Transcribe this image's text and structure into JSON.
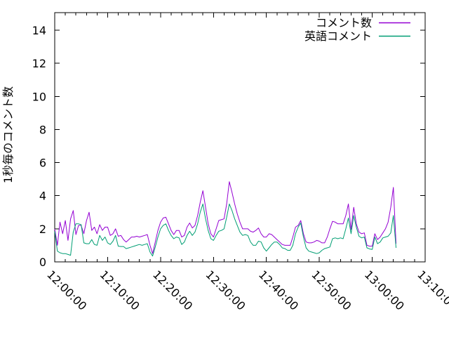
{
  "chart_data": {
    "type": "line",
    "title": "",
    "xlabel": "",
    "ylabel": "1秒毎のコメント数",
    "background": "#ffffff",
    "axis_color": "#000000",
    "grid": false,
    "legend_position": "top-right-inside",
    "x_tick_labels": [
      "12:00:00",
      "12:10:00",
      "12:20:00",
      "12:30:00",
      "12:40:00",
      "12:50:00",
      "13:00:00",
      "13:10:00"
    ],
    "x_tick_interval_seconds": 600,
    "x_minor_interval_seconds": 120,
    "x_total_seconds": 4200,
    "x_start_seconds": 0,
    "x_step_seconds": 30,
    "y_ticks": [
      0,
      2,
      4,
      6,
      8,
      10,
      12,
      14
    ],
    "y_max": 15.06,
    "series": [
      {
        "name": "コメント数",
        "color": "#9400d3",
        "values": [
          2,
          1,
          2.4,
          1.7,
          2.5,
          1.3,
          2.6,
          3.1,
          1.65,
          2.2,
          2.2,
          1.7,
          2.5,
          3,
          1.9,
          2.1,
          1.7,
          2.25,
          1.9,
          2.1,
          2.1,
          1.6,
          1.7,
          2,
          1.55,
          1.6,
          1.35,
          1.2,
          1.35,
          1.5,
          1.5,
          1.55,
          1.5,
          1.55,
          1.6,
          1.65,
          1,
          0.5,
          1.2,
          1.9,
          2.4,
          2.65,
          2.7,
          2.3,
          1.9,
          1.65,
          1.9,
          1.9,
          1.5,
          1.6,
          2.1,
          2.35,
          2.05,
          2.2,
          2.8,
          3.6,
          4.3,
          3.3,
          2.3,
          1.7,
          1.5,
          2,
          2.5,
          2.55,
          2.6,
          3.5,
          4.85,
          4.2,
          3.5,
          2.9,
          2.4,
          2,
          2,
          2,
          1.85,
          1.8,
          1.9,
          2.05,
          1.7,
          1.5,
          1.5,
          1.7,
          1.65,
          1.5,
          1.35,
          1.2,
          1.05,
          1,
          1,
          1,
          1.5,
          2.1,
          2.2,
          2.5,
          1.7,
          1.2,
          1.15,
          1.15,
          1.2,
          1.3,
          1.25,
          1.15,
          1.15,
          1.5,
          2,
          2.45,
          2.4,
          2.3,
          2.3,
          2.3,
          2.8,
          3.5,
          1.95,
          3.3,
          2.3,
          1.8,
          1.7,
          1.75,
          1,
          0.95,
          0.95,
          1.7,
          1.35,
          1.5,
          1.75,
          2,
          2.4,
          3.3,
          4.5,
          1.1
        ]
      },
      {
        "name": "英語コメント",
        "color": "#009e73",
        "values": [
          1.85,
          0.65,
          0.55,
          0.5,
          0.5,
          0.45,
          0.4,
          1.8,
          2.3,
          2.3,
          2.25,
          1.15,
          1.1,
          1.1,
          1.35,
          1.05,
          1,
          1.6,
          1.3,
          1.5,
          1.15,
          1.05,
          1.25,
          1.6,
          0.95,
          0.93,
          0.93,
          0.8,
          0.85,
          0.9,
          0.95,
          1,
          1.05,
          1,
          1.05,
          1.1,
          0.6,
          0.35,
          0.9,
          1.5,
          2,
          2.2,
          2.3,
          1.9,
          1.6,
          1.4,
          1.5,
          1.45,
          1.05,
          1.2,
          1.6,
          1.85,
          1.6,
          1.8,
          2.3,
          3,
          3.5,
          2.6,
          1.9,
          1.4,
          1.3,
          1.6,
          1.85,
          1.9,
          2,
          2.7,
          3.5,
          3.1,
          2.6,
          2.2,
          1.8,
          1.6,
          1.65,
          1.6,
          1.2,
          1,
          1,
          1.25,
          1.2,
          0.85,
          0.65,
          0.85,
          1.05,
          1.2,
          1.2,
          1.05,
          0.85,
          0.8,
          0.7,
          0.7,
          1,
          1.7,
          2.1,
          2.35,
          1.5,
          0.85,
          0.65,
          0.6,
          0.55,
          0.5,
          0.55,
          0.7,
          0.8,
          0.85,
          0.9,
          1.4,
          1.45,
          1.4,
          1.45,
          1.4,
          2,
          2.65,
          1.7,
          2.8,
          2.1,
          1.55,
          1.45,
          1.5,
          0.85,
          0.78,
          0.75,
          1.5,
          1.1,
          1.2,
          1.45,
          1.5,
          1.55,
          1.75,
          2.8,
          0.85
        ]
      }
    ]
  }
}
